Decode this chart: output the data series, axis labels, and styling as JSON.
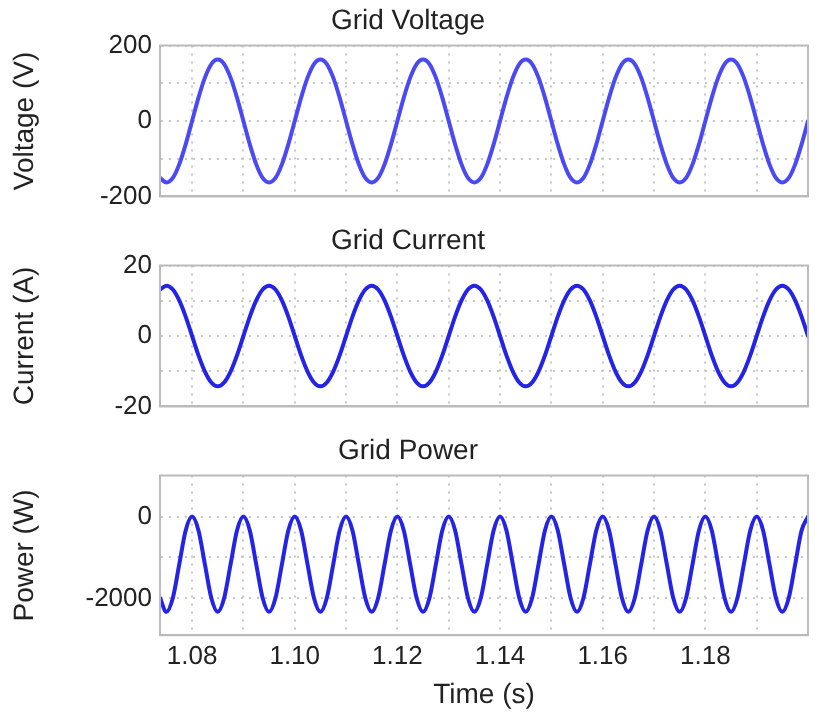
{
  "chart_data": [
    {
      "type": "line",
      "title": "Grid Voltage",
      "ylabel": "Voltage (V)",
      "xlim": [
        1.07375,
        1.2
      ],
      "ylim": [
        -200,
        200
      ],
      "yticks": [
        -200,
        {
          "value": -100,
          "label": null
        },
        0,
        {
          "value": 100,
          "label": null
        },
        200
      ],
      "xticks": [
        1.08,
        1.09,
        1.1,
        1.11,
        1.12,
        1.13,
        1.14,
        1.15,
        1.16,
        1.17,
        1.18,
        1.19,
        1.2
      ],
      "tick_labels": "y",
      "grid": true,
      "marker": "none",
      "line_style": "solid",
      "x": [
        1.07375,
        1.075,
        1.07625,
        1.0775,
        1.07875,
        1.08,
        1.08125,
        1.0825,
        1.08375,
        1.085,
        1.08625,
        1.0875,
        1.08875,
        1.09,
        1.09125,
        1.0925,
        1.09375,
        1.095,
        1.09625,
        1.0975,
        1.09875,
        1.1,
        1.10125,
        1.1025,
        1.10375,
        1.105,
        1.10625,
        1.1075,
        1.10875,
        1.11,
        1.11125,
        1.1125,
        1.11375,
        1.115,
        1.11625,
        1.1175,
        1.11875,
        1.12,
        1.12125,
        1.1225,
        1.12375,
        1.125,
        1.12625,
        1.1275,
        1.12875,
        1.13,
        1.13125,
        1.1325,
        1.13375,
        1.135,
        1.13625,
        1.1375,
        1.13875,
        1.14,
        1.14125,
        1.1425,
        1.14375,
        1.145,
        1.14625,
        1.1475,
        1.14875,
        1.15,
        1.15125,
        1.1525,
        1.15375,
        1.155,
        1.15625,
        1.1575,
        1.15875,
        1.16,
        1.16125,
        1.1625,
        1.16375,
        1.165,
        1.16625,
        1.1675,
        1.16875,
        1.17,
        1.17125,
        1.1725,
        1.17375,
        1.175,
        1.17625,
        1.1775,
        1.17875,
        1.18,
        1.18125,
        1.1825,
        1.18375,
        1.185,
        1.18625,
        1.1875,
        1.18875,
        1.19,
        1.19125,
        1.1925,
        1.19375,
        1.195,
        1.19625,
        1.1975,
        1.19875,
        1.2
      ],
      "series": [
        {
          "color": "#4a4af5",
          "values": [
            -151,
            -163,
            -151,
            -115,
            -62,
            0,
            62,
            115,
            151,
            163,
            151,
            115,
            62,
            0,
            -62,
            -115,
            -151,
            -163,
            -151,
            -115,
            -62,
            0,
            62,
            115,
            151,
            163,
            151,
            115,
            62,
            0,
            -62,
            -115,
            -151,
            -163,
            -151,
            -115,
            -62,
            0,
            62,
            115,
            151,
            163,
            151,
            115,
            62,
            0,
            -62,
            -115,
            -151,
            -163,
            -151,
            -115,
            -62,
            0,
            62,
            115,
            151,
            163,
            151,
            115,
            62,
            0,
            -62,
            -115,
            -151,
            -163,
            -151,
            -115,
            -62,
            0,
            62,
            115,
            151,
            163,
            151,
            115,
            62,
            0,
            -62,
            -115,
            -151,
            -163,
            -151,
            -115,
            -62,
            0,
            62,
            115,
            151,
            163,
            151,
            115,
            62,
            0,
            -62,
            -115,
            -151,
            -163,
            -151,
            -115,
            -62,
            0
          ]
        }
      ]
    },
    {
      "type": "line",
      "title": "Grid Current",
      "ylabel": "Current (A)",
      "xlim": [
        1.07375,
        1.2
      ],
      "ylim": [
        -20,
        20
      ],
      "yticks": [
        -20,
        {
          "value": -10,
          "label": null
        },
        0,
        {
          "value": 10,
          "label": null
        },
        20
      ],
      "xticks": [
        1.08,
        1.09,
        1.1,
        1.11,
        1.12,
        1.13,
        1.14,
        1.15,
        1.16,
        1.17,
        1.18,
        1.19,
        1.2
      ],
      "tick_labels": "y",
      "grid": true,
      "marker": "none",
      "line_style": "solid",
      "x": [
        1.07375,
        1.075,
        1.07625,
        1.0775,
        1.07875,
        1.08,
        1.08125,
        1.0825,
        1.08375,
        1.085,
        1.08625,
        1.0875,
        1.08875,
        1.09,
        1.09125,
        1.0925,
        1.09375,
        1.095,
        1.09625,
        1.0975,
        1.09875,
        1.1,
        1.10125,
        1.1025,
        1.10375,
        1.105,
        1.10625,
        1.1075,
        1.10875,
        1.11,
        1.11125,
        1.1125,
        1.11375,
        1.115,
        1.11625,
        1.1175,
        1.11875,
        1.12,
        1.12125,
        1.1225,
        1.12375,
        1.125,
        1.12625,
        1.1275,
        1.12875,
        1.13,
        1.13125,
        1.1325,
        1.13375,
        1.135,
        1.13625,
        1.1375,
        1.13875,
        1.14,
        1.14125,
        1.1425,
        1.14375,
        1.145,
        1.14625,
        1.1475,
        1.14875,
        1.15,
        1.15125,
        1.1525,
        1.15375,
        1.155,
        1.15625,
        1.1575,
        1.15875,
        1.16,
        1.16125,
        1.1625,
        1.16375,
        1.165,
        1.16625,
        1.1675,
        1.16875,
        1.17,
        1.17125,
        1.1725,
        1.17375,
        1.175,
        1.17625,
        1.1775,
        1.17875,
        1.18,
        1.18125,
        1.1825,
        1.18375,
        1.185,
        1.18625,
        1.1875,
        1.18875,
        1.19,
        1.19125,
        1.1925,
        1.19375,
        1.195,
        1.19625,
        1.1975,
        1.19875,
        1.2
      ],
      "series": [
        {
          "color": "#2424e6",
          "values": [
            13.2,
            14.3,
            13.2,
            10.1,
            5.5,
            0,
            -5.5,
            -10.1,
            -13.2,
            -14.3,
            -13.2,
            -10.1,
            -5.5,
            0,
            5.5,
            10.1,
            13.2,
            14.3,
            13.2,
            10.1,
            5.5,
            0,
            -5.5,
            -10.1,
            -13.2,
            -14.3,
            -13.2,
            -10.1,
            -5.5,
            0,
            5.5,
            10.1,
            13.2,
            14.3,
            13.2,
            10.1,
            5.5,
            0,
            -5.5,
            -10.1,
            -13.2,
            -14.3,
            -13.2,
            -10.1,
            -5.5,
            0,
            5.5,
            10.1,
            13.2,
            14.3,
            13.2,
            10.1,
            5.5,
            0,
            -5.5,
            -10.1,
            -13.2,
            -14.3,
            -13.2,
            -10.1,
            -5.5,
            0,
            5.5,
            10.1,
            13.2,
            14.3,
            13.2,
            10.1,
            5.5,
            0,
            -5.5,
            -10.1,
            -13.2,
            -14.3,
            -13.2,
            -10.1,
            -5.5,
            0,
            5.5,
            10.1,
            13.2,
            14.3,
            13.2,
            10.1,
            5.5,
            0,
            -5.5,
            -10.1,
            -13.2,
            -14.3,
            -13.2,
            -10.1,
            -5.5,
            0,
            5.5,
            10.1,
            13.2,
            14.3,
            13.2,
            10.1,
            5.5,
            0
          ]
        }
      ]
    },
    {
      "type": "line",
      "title": "Grid Power",
      "xlabel": "Time (s)",
      "ylabel": "Power (W)",
      "xlim": [
        1.07375,
        1.2
      ],
      "ylim": [
        -2900,
        1000
      ],
      "yticks": [
        -2000,
        {
          "value": -1000,
          "label": null
        },
        0
      ],
      "xticks": [
        1.08,
        {
          "value": 1.09,
          "label": null
        },
        {
          "value": 1.1,
          "label": "1.10"
        },
        {
          "value": 1.11,
          "label": null
        },
        1.12,
        {
          "value": 1.13,
          "label": null
        },
        1.14,
        {
          "value": 1.15,
          "label": null
        },
        1.16,
        {
          "value": 1.17,
          "label": null
        },
        1.18,
        {
          "value": 1.19,
          "label": null
        },
        {
          "value": 1.2,
          "label": null
        }
      ],
      "grid": true,
      "marker": "none",
      "line_style": "solid",
      "x": [
        1.07375,
        1.075,
        1.07625,
        1.0775,
        1.07875,
        1.08,
        1.08125,
        1.0825,
        1.08375,
        1.085,
        1.08625,
        1.0875,
        1.08875,
        1.09,
        1.09125,
        1.0925,
        1.09375,
        1.095,
        1.09625,
        1.0975,
        1.09875,
        1.1,
        1.10125,
        1.1025,
        1.10375,
        1.105,
        1.10625,
        1.1075,
        1.10875,
        1.11,
        1.11125,
        1.1125,
        1.11375,
        1.115,
        1.11625,
        1.1175,
        1.11875,
        1.12,
        1.12125,
        1.1225,
        1.12375,
        1.125,
        1.12625,
        1.1275,
        1.12875,
        1.13,
        1.13125,
        1.1325,
        1.13375,
        1.135,
        1.13625,
        1.1375,
        1.13875,
        1.14,
        1.14125,
        1.1425,
        1.14375,
        1.145,
        1.14625,
        1.1475,
        1.14875,
        1.15,
        1.15125,
        1.1525,
        1.15375,
        1.155,
        1.15625,
        1.1575,
        1.15875,
        1.16,
        1.16125,
        1.1625,
        1.16375,
        1.165,
        1.16625,
        1.1675,
        1.16875,
        1.17,
        1.17125,
        1.1725,
        1.17375,
        1.175,
        1.17625,
        1.1775,
        1.17875,
        1.18,
        1.18125,
        1.1825,
        1.18375,
        1.185,
        1.18625,
        1.1875,
        1.18875,
        1.19,
        1.19125,
        1.1925,
        1.19375,
        1.195,
        1.19625,
        1.1975,
        1.19875,
        1.2
      ],
      "series": [
        {
          "color": "#2424e6",
          "values": [
            -1990,
            -2330,
            -1990,
            -1170,
            -340,
            0,
            -340,
            -1170,
            -1990,
            -2330,
            -1990,
            -1170,
            -340,
            0,
            -340,
            -1170,
            -1990,
            -2330,
            -1990,
            -1170,
            -340,
            0,
            -340,
            -1170,
            -1990,
            -2330,
            -1990,
            -1170,
            -340,
            0,
            -340,
            -1170,
            -1990,
            -2330,
            -1990,
            -1170,
            -340,
            0,
            -340,
            -1170,
            -1990,
            -2330,
            -1990,
            -1170,
            -340,
            0,
            -340,
            -1170,
            -1990,
            -2330,
            -1990,
            -1170,
            -340,
            0,
            -340,
            -1170,
            -1990,
            -2330,
            -1990,
            -1170,
            -340,
            0,
            -340,
            -1170,
            -1990,
            -2330,
            -1990,
            -1170,
            -340,
            0,
            -340,
            -1170,
            -1990,
            -2330,
            -1990,
            -1170,
            -340,
            0,
            -340,
            -1170,
            -1990,
            -2330,
            -1990,
            -1170,
            -340,
            0,
            -340,
            -1170,
            -1990,
            -2330,
            -1990,
            -1170,
            -340,
            0,
            -340,
            -1170,
            -1990,
            -2330,
            -1990,
            -1170,
            -340,
            0
          ]
        }
      ]
    }
  ]
}
